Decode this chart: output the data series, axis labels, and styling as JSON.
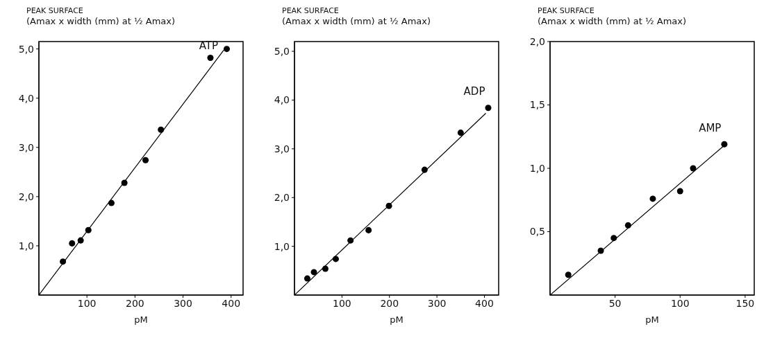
{
  "chart_data": [
    {
      "type": "scatter",
      "ylabel": "PEAK SURFACE\n(Amax x width (mm) at ½ Amax)",
      "xlabel": "pM",
      "xlim": [
        0,
        425
      ],
      "ylim": [
        0,
        5.15
      ],
      "xticks": [
        100,
        200,
        300,
        400
      ],
      "yticks": [
        {
          "value": 1,
          "label": "1,0"
        },
        {
          "value": 2,
          "label": "2,0"
        },
        {
          "value": 3,
          "label": "3,0"
        },
        {
          "value": 4,
          "label": "4,0"
        },
        {
          "value": 5,
          "label": "5,0"
        }
      ],
      "grid": false,
      "marker": "circle",
      "series": [
        {
          "name": "ATP",
          "color": "#000000",
          "x": [
            50,
            69,
            87,
            103,
            151,
            178,
            222,
            254,
            357,
            391
          ],
          "values": [
            0.68,
            1.05,
            1.11,
            1.32,
            1.87,
            2.28,
            2.74,
            3.36,
            4.82,
            5.0
          ]
        },
        {
          "type": "line",
          "marker": "none",
          "color": "#000000",
          "x": [
            0,
            385
          ],
          "values": [
            0,
            4.98
          ]
        }
      ]
    },
    {
      "type": "scatter",
      "ylabel": "PEAK SURFACE\n(Amax x width (mm) at ½ Amax)",
      "xlabel": "pM",
      "xlim": [
        0,
        430
      ],
      "ylim": [
        0,
        5.2
      ],
      "xticks": [
        100,
        200,
        300,
        400
      ],
      "yticks": [
        {
          "value": 1,
          "label": "1,0"
        },
        {
          "value": 2,
          "label": "2,0"
        },
        {
          "value": 3,
          "label": "3,0"
        },
        {
          "value": 4,
          "label": "4,0"
        },
        {
          "value": 5,
          "label": "5,0"
        }
      ],
      "grid": false,
      "marker": "circle",
      "series": [
        {
          "name": "ADP",
          "color": "#000000",
          "x": [
            27,
            41,
            65,
            87,
            118,
            156,
            199,
            274,
            350,
            408
          ],
          "values": [
            0.34,
            0.47,
            0.54,
            0.74,
            1.12,
            1.33,
            1.83,
            2.57,
            3.33,
            3.84
          ]
        },
        {
          "type": "line",
          "marker": "none",
          "color": "#000000",
          "x": [
            0,
            403
          ],
          "values": [
            0,
            3.73
          ]
        }
      ]
    },
    {
      "type": "scatter",
      "ylabel": "PEAK SURFACE\n(Amax x width (mm) at ½ Amax)",
      "xlabel": "pM",
      "xlim": [
        0,
        157
      ],
      "ylim": [
        0,
        2.0
      ],
      "xticks": [
        50,
        100,
        150
      ],
      "yticks": [
        {
          "value": 0.5,
          "label": "0,5"
        },
        {
          "value": 1,
          "label": "1,0"
        },
        {
          "value": 1.5,
          "label": "1,5"
        },
        {
          "value": 2,
          "label": "2,0"
        }
      ],
      "grid": false,
      "marker": "circle",
      "series": [
        {
          "name": "AMP",
          "color": "#000000",
          "x": [
            14,
            39,
            49,
            60,
            79,
            100,
            110,
            134
          ],
          "values": [
            0.16,
            0.35,
            0.45,
            0.55,
            0.76,
            0.82,
            1.0,
            1.19
          ]
        },
        {
          "type": "line",
          "marker": "none",
          "color": "#000000",
          "x": [
            0,
            135
          ],
          "values": [
            0,
            1.19
          ]
        }
      ]
    }
  ]
}
